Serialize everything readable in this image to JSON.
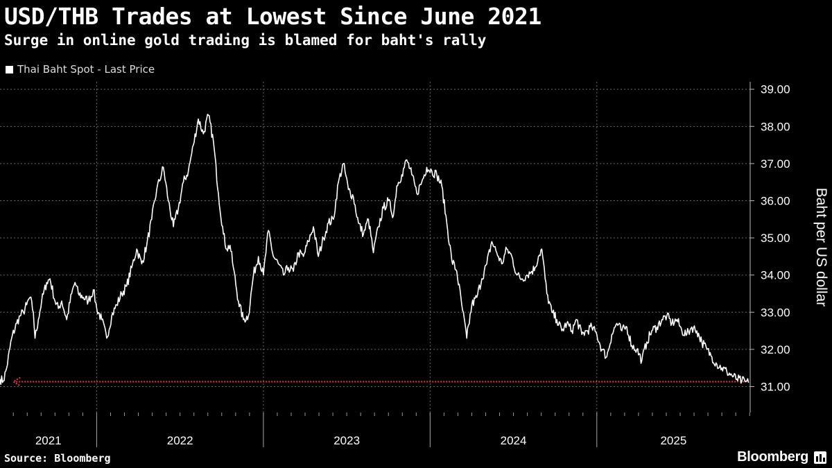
{
  "chart_data": {
    "type": "line",
    "title": "USD/THB Trades at Lowest Since June 2021",
    "subtitle": "Surge in online gold trading is blamed for baht's rally",
    "legend": [
      "Thai Baht Spot - Last Price"
    ],
    "ylabel": "Baht per US dollar",
    "xlabel": "",
    "ylim": [
      30.3,
      39.2
    ],
    "yticks": [
      "31.00",
      "32.00",
      "33.00",
      "34.00",
      "35.00",
      "36.00",
      "37.00",
      "38.00",
      "39.00"
    ],
    "ytick_values": [
      31,
      32,
      33,
      34,
      35,
      36,
      37,
      38,
      39
    ],
    "xlim": [
      2021.42,
      2025.92
    ],
    "xtick_labels": [
      "2021",
      "2022",
      "2023",
      "2024",
      "2025"
    ],
    "x_boundaries": [
      2022.0,
      2023.0,
      2024.0,
      2025.0
    ],
    "grid": true,
    "series": [
      {
        "name": "Thai Baht Spot - Last Price",
        "color": "#ffffff",
        "x": [
          2021.42,
          2021.44,
          2021.46,
          2021.49,
          2021.52,
          2021.54,
          2021.56,
          2021.58,
          2021.6,
          2021.62,
          2021.63,
          2021.65,
          2021.67,
          2021.7,
          2021.72,
          2021.75,
          2021.77,
          2021.79,
          2021.82,
          2021.85,
          2021.87,
          2021.89,
          2021.92,
          2021.95,
          2021.98,
          2022.0,
          2022.03,
          2022.06,
          2022.09,
          2022.12,
          2022.15,
          2022.18,
          2022.21,
          2022.24,
          2022.27,
          2022.3,
          2022.33,
          2022.36,
          2022.4,
          2022.43,
          2022.46,
          2022.49,
          2022.52,
          2022.55,
          2022.58,
          2022.61,
          2022.64,
          2022.67,
          2022.7,
          2022.73,
          2022.76,
          2022.78,
          2022.8,
          2022.82,
          2022.85,
          2022.88,
          2022.91,
          2022.94,
          2022.97,
          2023.0,
          2023.03,
          2023.06,
          2023.09,
          2023.12,
          2023.15,
          2023.18,
          2023.21,
          2023.24,
          2023.27,
          2023.3,
          2023.33,
          2023.36,
          2023.39,
          2023.42,
          2023.45,
          2023.48,
          2023.51,
          2023.54,
          2023.57,
          2023.6,
          2023.63,
          2023.66,
          2023.69,
          2023.72,
          2023.75,
          2023.78,
          2023.8,
          2023.83,
          2023.86,
          2023.89,
          2023.92,
          2023.95,
          2023.98,
          2024.01,
          2024.04,
          2024.07,
          2024.1,
          2024.13,
          2024.16,
          2024.19,
          2024.22,
          2024.25,
          2024.28,
          2024.31,
          2024.34,
          2024.37,
          2024.4,
          2024.43,
          2024.46,
          2024.49,
          2024.52,
          2024.55,
          2024.58,
          2024.61,
          2024.63,
          2024.65,
          2024.67,
          2024.7,
          2024.73,
          2024.76,
          2024.79,
          2024.82,
          2024.85,
          2024.88,
          2024.91,
          2024.94,
          2024.97,
          2025.0,
          2025.03,
          2025.06,
          2025.09,
          2025.12,
          2025.15,
          2025.18,
          2025.21,
          2025.24,
          2025.27,
          2025.3,
          2025.33,
          2025.36,
          2025.39,
          2025.42,
          2025.45,
          2025.48,
          2025.51,
          2025.54,
          2025.57,
          2025.6,
          2025.63,
          2025.66,
          2025.69,
          2025.72,
          2025.75,
          2025.78,
          2025.81,
          2025.84,
          2025.87,
          2025.89,
          2025.91
        ],
        "values": [
          31.2,
          31.15,
          31.5,
          32.3,
          32.7,
          32.9,
          33.0,
          33.2,
          33.4,
          33.0,
          32.3,
          32.8,
          33.3,
          33.8,
          33.9,
          33.3,
          33.1,
          33.3,
          32.8,
          33.5,
          33.8,
          33.5,
          33.4,
          33.3,
          33.6,
          33.1,
          32.8,
          32.3,
          32.9,
          33.2,
          33.5,
          33.7,
          34.2,
          34.7,
          34.3,
          34.8,
          35.5,
          36.3,
          36.9,
          36.0,
          35.3,
          35.8,
          36.5,
          36.8,
          37.5,
          38.2,
          37.8,
          38.3,
          37.6,
          36.2,
          35.1,
          34.7,
          34.8,
          34.2,
          33.3,
          32.8,
          32.9,
          34.0,
          34.5,
          34.0,
          35.2,
          34.5,
          34.3,
          34.0,
          34.2,
          34.1,
          34.6,
          34.5,
          34.9,
          35.3,
          34.5,
          35.0,
          35.4,
          35.5,
          36.5,
          37.0,
          36.3,
          36.1,
          35.4,
          35.1,
          35.5,
          34.6,
          35.3,
          35.8,
          36.0,
          35.6,
          36.4,
          36.7,
          37.1,
          36.7,
          36.2,
          36.5,
          36.9,
          36.8,
          36.7,
          36.4,
          35.4,
          34.4,
          34.1,
          33.2,
          32.3,
          33.2,
          33.4,
          33.9,
          34.3,
          34.9,
          34.6,
          34.3,
          34.7,
          34.5,
          34.0,
          33.9,
          34.0,
          34.1,
          34.2,
          34.5,
          34.7,
          33.5,
          33.0,
          32.8,
          32.5,
          32.7,
          32.5,
          32.8,
          32.4,
          32.5,
          32.6,
          32.4,
          32.0,
          31.8,
          32.4,
          32.7,
          32.5,
          32.6,
          32.1,
          32.0,
          31.7,
          32.2,
          32.5,
          32.6,
          32.8,
          32.9,
          32.7,
          32.8,
          32.5,
          32.4,
          32.6,
          32.5,
          32.2,
          32.0,
          31.8,
          31.6,
          31.5,
          31.4,
          31.3,
          31.2,
          31.15,
          31.13,
          31.1
        ],
        "noise_amplitude": 0.13
      }
    ],
    "annotations": [
      {
        "type": "dotted-horizontal-line",
        "y": 31.13,
        "x_start": 2021.5,
        "x_end": 2025.91,
        "color": "#e8364a",
        "arrow": "left"
      }
    ]
  },
  "footer": {
    "source": "Source: Bloomberg",
    "brand": "Bloomberg"
  }
}
